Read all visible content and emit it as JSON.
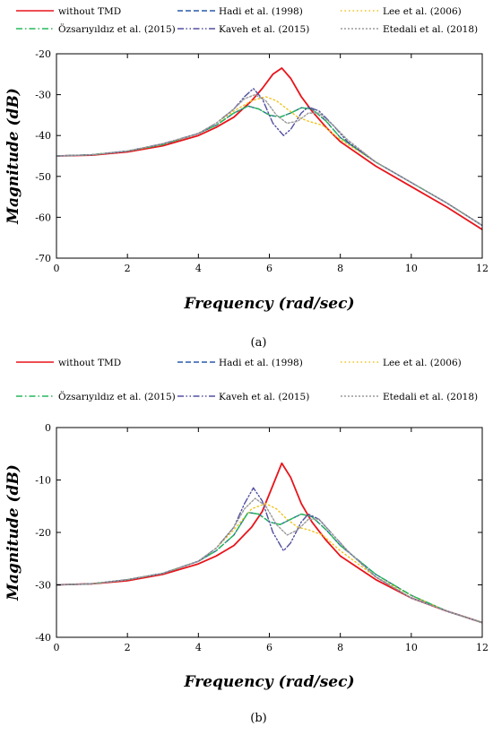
{
  "chart_data": [
    {
      "type": "line",
      "caption": "(a)",
      "xlabel": "Frequency (rad/sec)",
      "ylabel": "Magnitude (dB)",
      "xlim": [
        0,
        12
      ],
      "ylim": [
        -70,
        -20
      ],
      "xticks": [
        0,
        2,
        4,
        6,
        8,
        10,
        12
      ],
      "yticks": [
        -70,
        -60,
        -50,
        -40,
        -30,
        -20
      ],
      "grid": false,
      "legend_position": "top",
      "series": [
        {
          "name": "without TMD",
          "color": "#e8141b",
          "style": "solid",
          "x": [
            0,
            1,
            2,
            3,
            4,
            4.5,
            5,
            5.5,
            5.8,
            6.1,
            6.35,
            6.6,
            6.9,
            7.2,
            7.6,
            8,
            9,
            10,
            11,
            12
          ],
          "y": [
            -45,
            -44.8,
            -44,
            -42.5,
            -40,
            -38,
            -35.5,
            -31.5,
            -28.5,
            -25,
            -23.5,
            -26,
            -30.5,
            -34,
            -38,
            -41.5,
            -47.5,
            -52.5,
            -57.5,
            -63
          ]
        },
        {
          "name": "Hadi et al. (1998)",
          "color": "#2a5aa8",
          "style": "dash",
          "x": [
            0,
            1,
            2,
            3,
            4,
            4.5,
            5,
            5.4,
            5.7,
            6,
            6.3,
            6.6,
            6.9,
            7.2,
            7.6,
            8,
            9,
            10,
            11,
            12
          ],
          "y": [
            -45,
            -44.7,
            -43.8,
            -42.2,
            -39.5,
            -37.5,
            -34.5,
            -32.8,
            -33.5,
            -35,
            -35.5,
            -34.5,
            -33.2,
            -33.5,
            -36.5,
            -40.5,
            -46.5,
            -51.5,
            -56.5,
            -62
          ]
        },
        {
          "name": "Lee et al. (2006)",
          "color": "#f2c21b",
          "style": "dot",
          "x": [
            0,
            1,
            2,
            3,
            4,
            4.5,
            5,
            5.5,
            5.9,
            6.2,
            6.5,
            6.8,
            7.1,
            7.5,
            8,
            9,
            10,
            11,
            12
          ],
          "y": [
            -45,
            -44.7,
            -43.8,
            -42.2,
            -39.5,
            -37,
            -34,
            -31.5,
            -30.5,
            -31.5,
            -33.5,
            -35.5,
            -36.5,
            -37.5,
            -41,
            -46.5,
            -51.5,
            -56.5,
            -62
          ]
        },
        {
          "name": "Özsarıyıldız et al. (2015)",
          "color": "#26b85a",
          "style": "dashdot",
          "x": [
            0,
            1,
            2,
            3,
            4,
            4.5,
            5,
            5.4,
            5.7,
            6,
            6.3,
            6.6,
            6.9,
            7.2,
            7.6,
            8,
            9,
            10,
            11,
            12
          ],
          "y": [
            -45,
            -44.7,
            -43.8,
            -42.2,
            -39.5,
            -37.5,
            -34.5,
            -32.8,
            -33.5,
            -35,
            -35.5,
            -34.5,
            -33.2,
            -33.5,
            -36.5,
            -40.5,
            -46.5,
            -51.5,
            -56.5,
            -62
          ]
        },
        {
          "name": "Kaveh et al. (2015)",
          "color": "#5250a0",
          "style": "dashdotdot",
          "x": [
            0,
            1,
            2,
            3,
            4,
            4.5,
            5,
            5.3,
            5.55,
            5.8,
            6.1,
            6.4,
            6.6,
            6.9,
            7.1,
            7.4,
            7.8,
            8.2,
            9,
            10,
            11,
            12
          ],
          "y": [
            -45,
            -44.7,
            -43.8,
            -42,
            -39.5,
            -37,
            -33.5,
            -30.5,
            -28.5,
            -31,
            -37,
            -40,
            -38.5,
            -34.5,
            -33,
            -34,
            -37.5,
            -41.5,
            -46.5,
            -51.5,
            -56.5,
            -62
          ]
        },
        {
          "name": "Etedali et al. (2018)",
          "color": "#9a9a9a",
          "style": "shortdot",
          "x": [
            0,
            1,
            2,
            3,
            4,
            4.5,
            5,
            5.3,
            5.6,
            5.9,
            6.2,
            6.5,
            6.8,
            7.1,
            7.4,
            7.8,
            8.2,
            9,
            10,
            11,
            12
          ],
          "y": [
            -45,
            -44.7,
            -43.8,
            -42,
            -39.5,
            -37,
            -33.5,
            -31,
            -30,
            -31.5,
            -35,
            -37,
            -36.5,
            -34.5,
            -34.5,
            -37.5,
            -41,
            -46.5,
            -51.5,
            -56.5,
            -62
          ]
        }
      ]
    },
    {
      "type": "line",
      "caption": "(b)",
      "xlabel": "Frequency (rad/sec)",
      "ylabel": "Magnitude (dB)",
      "xlim": [
        0,
        12
      ],
      "ylim": [
        -40,
        0
      ],
      "xticks": [
        0,
        2,
        4,
        6,
        8,
        10,
        12
      ],
      "yticks": [
        -40,
        -30,
        -20,
        -10,
        0
      ],
      "grid": false,
      "legend_position": "top",
      "series": [
        {
          "name": "without TMD",
          "color": "#e8141b",
          "style": "solid",
          "x": [
            0,
            1,
            2,
            3,
            4,
            4.5,
            5,
            5.5,
            5.8,
            6.1,
            6.35,
            6.6,
            6.9,
            7.2,
            7.6,
            8,
            9,
            10,
            11,
            12
          ],
          "y": [
            -30,
            -29.8,
            -29.2,
            -28,
            -26,
            -24.5,
            -22.5,
            -19,
            -16,
            -11,
            -6.8,
            -9.5,
            -14.5,
            -18,
            -21.5,
            -24.5,
            -29,
            -32.5,
            -35,
            -37.2
          ]
        },
        {
          "name": "Hadi et al. (1998)",
          "color": "#2a5aa8",
          "style": "dash",
          "x": [
            0,
            1,
            2,
            3,
            4,
            4.5,
            5,
            5.4,
            5.7,
            6,
            6.3,
            6.6,
            6.9,
            7.2,
            7.6,
            8,
            9,
            10,
            11,
            12
          ],
          "y": [
            -30,
            -29.8,
            -29,
            -27.8,
            -25.5,
            -23.5,
            -20.5,
            -16.2,
            -16.5,
            -18,
            -18.5,
            -17.5,
            -16.5,
            -17,
            -19.5,
            -22.5,
            -28,
            -32,
            -35,
            -37.2
          ]
        },
        {
          "name": "Lee et al. (2006)",
          "color": "#f2c21b",
          "style": "dot",
          "x": [
            0,
            1,
            2,
            3,
            4,
            4.5,
            5,
            5.5,
            5.9,
            6.2,
            6.5,
            6.8,
            7.1,
            7.5,
            8,
            9,
            10,
            11,
            12
          ],
          "y": [
            -30,
            -29.8,
            -29,
            -27.8,
            -25.5,
            -23,
            -19.5,
            -15.5,
            -14.5,
            -15.5,
            -17.5,
            -19,
            -19.5,
            -20.5,
            -23.5,
            -28.5,
            -32,
            -35,
            -37.2
          ]
        },
        {
          "name": "Özsarıyıldız et al. (2015)",
          "color": "#26b85a",
          "style": "dashdot",
          "x": [
            0,
            1,
            2,
            3,
            4,
            4.5,
            5,
            5.4,
            5.7,
            6,
            6.3,
            6.6,
            6.9,
            7.2,
            7.6,
            8,
            9,
            10,
            11,
            12
          ],
          "y": [
            -30,
            -29.8,
            -29,
            -27.8,
            -25.5,
            -23.5,
            -20.5,
            -16.2,
            -16.5,
            -18,
            -18.5,
            -17.5,
            -16.5,
            -17,
            -19.5,
            -22.5,
            -28,
            -32,
            -35,
            -37.2
          ]
        },
        {
          "name": "Kaveh et al. (2015)",
          "color": "#5250a0",
          "style": "dashdotdot",
          "x": [
            0,
            1,
            2,
            3,
            4,
            4.5,
            5,
            5.3,
            5.55,
            5.8,
            6.1,
            6.4,
            6.6,
            6.9,
            7.1,
            7.4,
            7.8,
            8.2,
            9,
            10,
            11,
            12
          ],
          "y": [
            -30,
            -29.8,
            -29,
            -27.8,
            -25.5,
            -23,
            -19,
            -14.5,
            -11.5,
            -14,
            -20,
            -23.5,
            -22,
            -18,
            -16.5,
            -17.5,
            -20.5,
            -23.5,
            -28.5,
            -32.5,
            -35,
            -37.2
          ]
        },
        {
          "name": "Etedali et al. (2018)",
          "color": "#9a9a9a",
          "style": "shortdot",
          "x": [
            0,
            1,
            2,
            3,
            4,
            4.5,
            5,
            5.3,
            5.6,
            5.9,
            6.2,
            6.5,
            6.8,
            7.1,
            7.4,
            7.8,
            8.2,
            9,
            10,
            11,
            12
          ],
          "y": [
            -30,
            -29.8,
            -29,
            -27.8,
            -25.5,
            -23,
            -19,
            -15.5,
            -13.5,
            -15,
            -18.5,
            -20.5,
            -19.5,
            -17.5,
            -17.5,
            -20.5,
            -23.5,
            -28.5,
            -32.5,
            -35,
            -37.2
          ]
        }
      ]
    }
  ]
}
